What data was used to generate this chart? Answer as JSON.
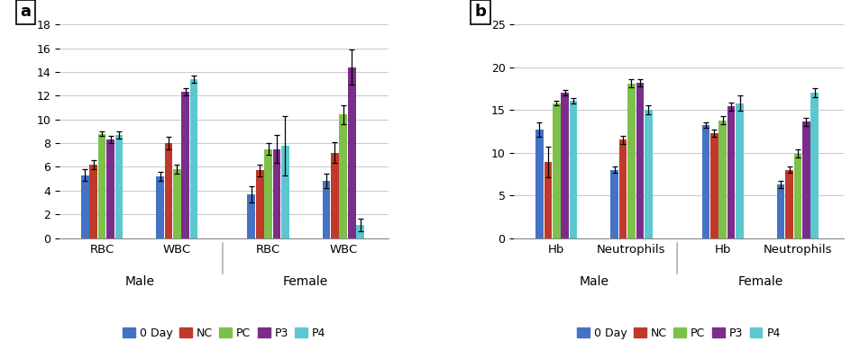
{
  "panel_a": {
    "title": "a",
    "ylim": [
      0,
      18
    ],
    "yticks": [
      0,
      2,
      4,
      6,
      8,
      10,
      12,
      14,
      16,
      18
    ],
    "groups": [
      "Male",
      "Female"
    ],
    "subgroups": [
      "RBC",
      "WBC"
    ],
    "values": {
      "Male": {
        "RBC": [
          5.3,
          6.2,
          8.8,
          8.3,
          8.7
        ],
        "WBC": [
          5.2,
          8.0,
          5.8,
          12.3,
          13.4
        ]
      },
      "Female": {
        "RBC": [
          3.7,
          5.7,
          7.5,
          7.5,
          7.8
        ],
        "WBC": [
          4.8,
          7.2,
          10.4,
          14.4,
          1.1
        ]
      }
    },
    "errors": {
      "Male": {
        "RBC": [
          0.5,
          0.4,
          0.2,
          0.3,
          0.3
        ],
        "WBC": [
          0.4,
          0.5,
          0.4,
          0.3,
          0.3
        ]
      },
      "Female": {
        "RBC": [
          0.7,
          0.5,
          0.5,
          1.2,
          2.5
        ],
        "WBC": [
          0.6,
          0.9,
          0.8,
          1.5,
          0.5
        ]
      }
    }
  },
  "panel_b": {
    "title": "b",
    "ylim": [
      0,
      25
    ],
    "yticks": [
      0,
      5,
      10,
      15,
      20,
      25
    ],
    "groups": [
      "Male",
      "Female"
    ],
    "subgroups": [
      "Hb",
      "Neutrophils"
    ],
    "values": {
      "Male": {
        "Hb": [
          12.7,
          8.9,
          15.8,
          17.0,
          16.1
        ],
        "Neutrophils": [
          8.0,
          11.5,
          18.1,
          18.2,
          15.0
        ]
      },
      "Female": {
        "Hb": [
          13.2,
          12.3,
          13.8,
          15.4,
          15.8
        ],
        "Neutrophils": [
          6.3,
          8.0,
          9.9,
          13.6,
          17.0
        ]
      }
    },
    "errors": {
      "Male": {
        "Hb": [
          0.8,
          1.8,
          0.3,
          0.3,
          0.3
        ],
        "Neutrophils": [
          0.4,
          0.5,
          0.5,
          0.4,
          0.5
        ]
      },
      "Female": {
        "Hb": [
          0.3,
          0.4,
          0.5,
          0.5,
          0.9
        ],
        "Neutrophils": [
          0.4,
          0.4,
          0.5,
          0.5,
          0.5
        ]
      }
    }
  },
  "legend_labels": [
    "0 Day",
    "NC",
    "PC",
    "P3",
    "P4"
  ],
  "bar_colors": [
    "#4472C4",
    "#C0392B",
    "#7DC14B",
    "#7B2D8B",
    "#5BC8D0"
  ],
  "bar_width": 0.13,
  "bg_color": "#FFFFFF",
  "grid_color": "#C8C8C8",
  "label_fontsize": 9.5,
  "tick_fontsize": 9,
  "group_label_fontsize": 10,
  "legend_fontsize": 9,
  "panel_label_fontsize": 13
}
